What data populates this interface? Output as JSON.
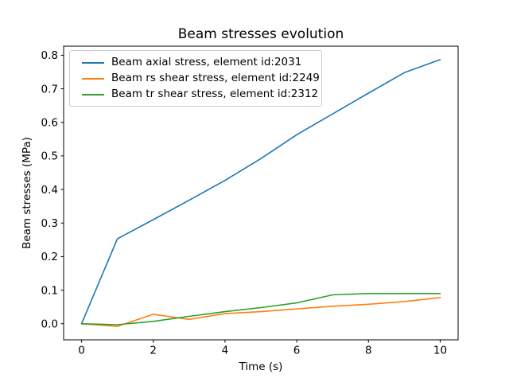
{
  "figure": {
    "background_color": "#ffffff",
    "text_color": "#000000"
  },
  "chart_data": {
    "type": "line",
    "title": "Beam stresses evolution",
    "xlabel": "Time (s)",
    "ylabel": "Beam stresses (MPa)",
    "x": [
      0,
      1,
      2,
      3,
      4,
      5,
      6,
      7,
      8,
      9,
      10
    ],
    "series": [
      {
        "name": "Beam axial stress, element id:2031",
        "color": "#1f77b4",
        "values": [
          0.0,
          0.253,
          0.31,
          0.368,
          0.427,
          0.492,
          0.563,
          0.625,
          0.687,
          0.748,
          0.787
        ]
      },
      {
        "name": "Beam rs shear stress, element id:2249",
        "color": "#ff7f0e",
        "values": [
          0.0,
          -0.008,
          0.028,
          0.013,
          0.03,
          0.036,
          0.044,
          0.052,
          0.058,
          0.066,
          0.078
        ]
      },
      {
        "name": "Beam tr shear stress, element id:2312",
        "color": "#2ca02c",
        "values": [
          0.0,
          -0.003,
          0.007,
          0.022,
          0.036,
          0.048,
          0.062,
          0.086,
          0.09,
          0.09,
          0.09
        ]
      }
    ],
    "xlim": [
      -0.5,
      10.5
    ],
    "ylim": [
      -0.048,
      0.827
    ],
    "xticks": [
      0,
      2,
      4,
      6,
      8,
      10
    ],
    "yticks": [
      0.0,
      0.1,
      0.2,
      0.3,
      0.4,
      0.5,
      0.6,
      0.7,
      0.8
    ],
    "grid": false,
    "legend_position": "upper left",
    "spine_color": "#000000",
    "tick_color": "#000000",
    "line_width": 1.6
  }
}
